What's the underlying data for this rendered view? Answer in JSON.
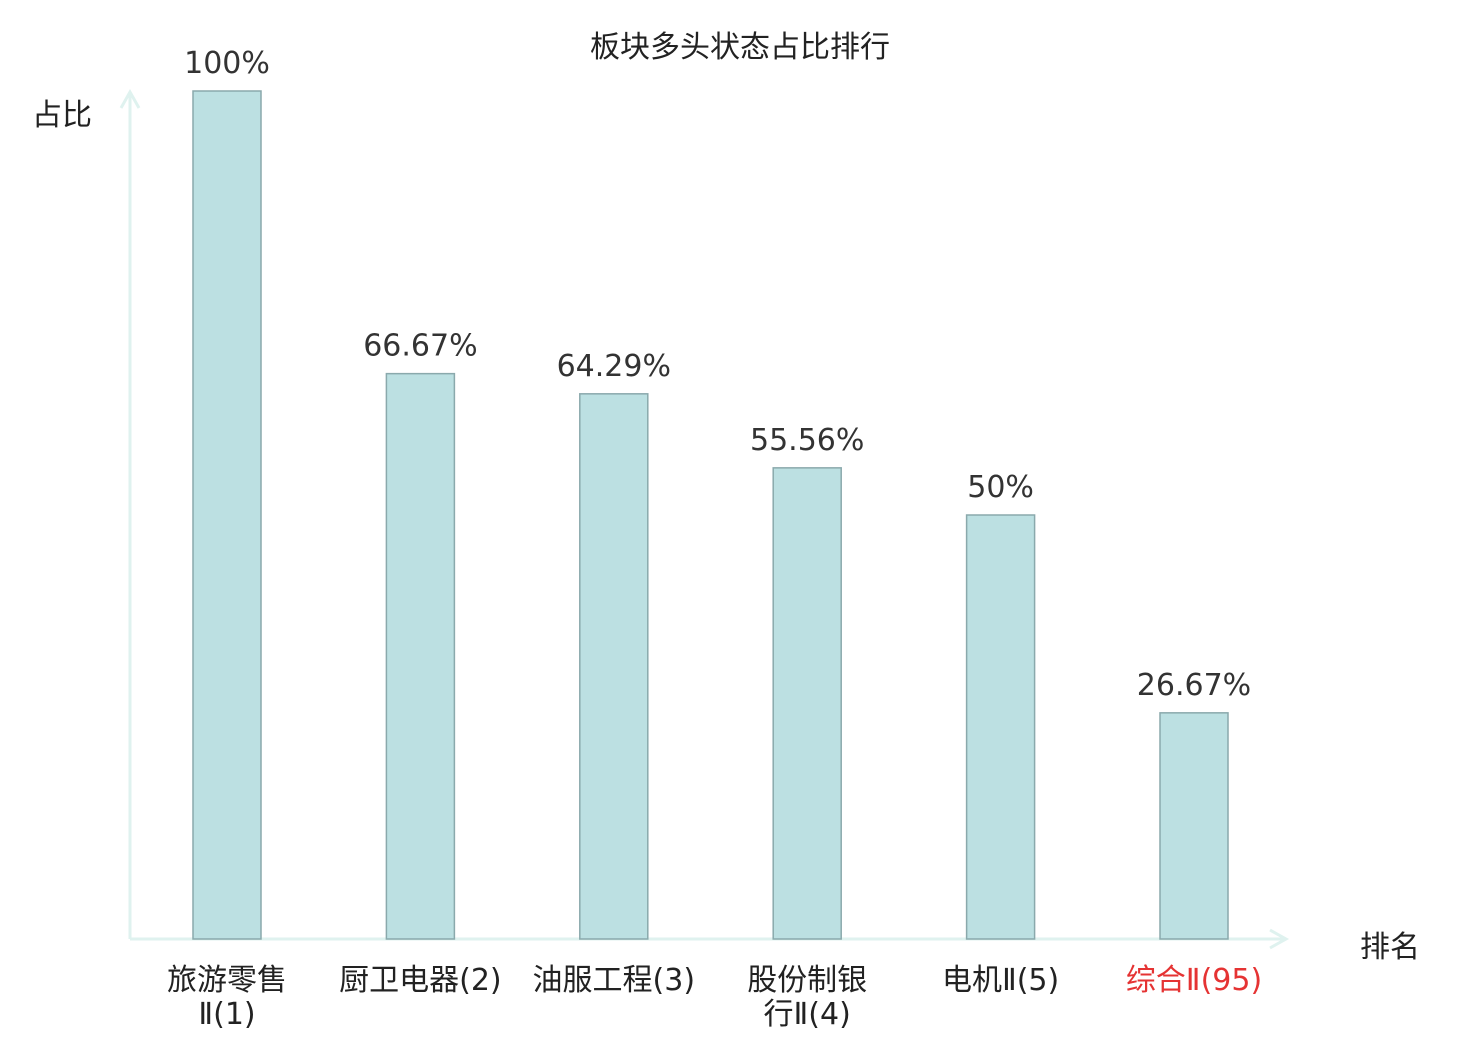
{
  "chart_data": {
    "type": "bar",
    "title": "板块多头状态占比排行",
    "ylabel": "占比",
    "xlabel": "排名",
    "categories": [
      "旅游零售Ⅱ(1)",
      "厨卫电器(2)",
      "油服工程(3)",
      "股份制银行Ⅱ(4)",
      "电机Ⅱ(5)",
      "综合Ⅱ(95)"
    ],
    "category_lines": [
      [
        "旅游零售",
        "Ⅱ(1)"
      ],
      [
        "厨卫电器(2)"
      ],
      [
        "油服工程(3)"
      ],
      [
        "股份制银",
        "行Ⅱ(4)"
      ],
      [
        "电机Ⅱ(5)"
      ],
      [
        "综合Ⅱ(95)"
      ]
    ],
    "values": [
      100,
      66.67,
      64.29,
      55.56,
      50,
      26.67
    ],
    "value_labels": [
      "100%",
      "66.67%",
      "64.29%",
      "55.56%",
      "50%",
      "26.67%"
    ],
    "highlight_index": 5,
    "ylim": [
      0,
      100
    ],
    "grid": false,
    "colors": {
      "bar_fill": "#bce0e2",
      "bar_stroke": "#8aa9ac",
      "axis": "#dff2ef",
      "highlight_label": "#e53333"
    }
  }
}
